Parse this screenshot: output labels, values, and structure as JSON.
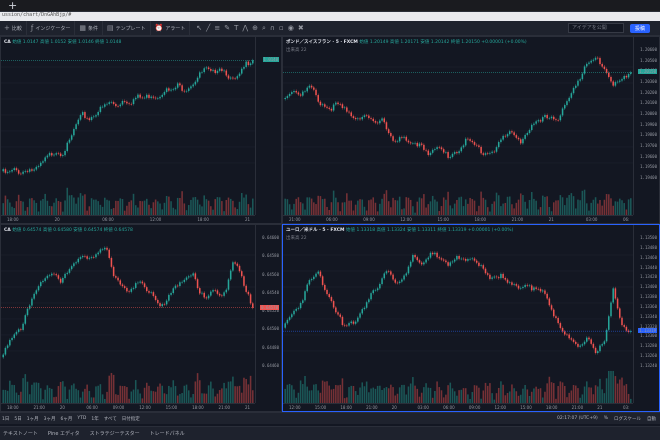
{
  "browser": {
    "url_text": "ussion/chart/DnGAhBjp/#"
  },
  "toolbar": {
    "items": [
      {
        "icon": "plus-icon",
        "glyph": "+",
        "label": "比較"
      },
      {
        "icon": "indicator-icon",
        "glyph": "ƒ",
        "label": "インジケーター"
      },
      {
        "icon": "layout-icon",
        "glyph": "▦",
        "label": "条件"
      },
      {
        "icon": "template-icon",
        "glyph": "▤",
        "label": "テンプレート"
      },
      {
        "icon": "alert-icon",
        "glyph": "⏰",
        "label": "アラート"
      }
    ],
    "search_placeholder": "アイデアを公開",
    "login_label": "投稿"
  },
  "panes": [
    {
      "symbol": "CA",
      "ohlc": "始値 1.0147  高値 1.0152  安値 1.0146  終値 1.0148",
      "price_tag": "1.0148",
      "price_tag_color": "#26a69a",
      "yticks": [],
      "xticks": [
        "18:00",
        "20",
        "06:00",
        "12:00",
        "18:00",
        "21"
      ],
      "series": [
        0.06,
        0.04,
        0.07,
        0.05,
        0.08,
        0.06,
        0.12,
        0.18,
        0.22,
        0.2,
        0.28,
        0.42,
        0.5,
        0.47,
        0.52,
        0.56,
        0.6,
        0.57,
        0.62,
        0.6,
        0.64,
        0.63,
        0.66,
        0.64,
        0.7,
        0.68,
        0.73,
        0.7,
        0.74,
        0.8,
        0.86,
        0.82,
        0.88,
        0.84,
        0.76,
        0.8,
        0.9,
        0.94
      ]
    },
    {
      "symbol": "ポンド／スイスフラン · 5 · FXCM",
      "ohlc": "始値 1.20149  高値 1.20171  安値 1.20142  終値 1.20150  +0.00001 (+0.00%)",
      "sub": "出来高 22",
      "price_tag": "1.20150",
      "price_tag_color": "#26a69a",
      "yticks": [
        "1.20600",
        "1.20500",
        "1.20400",
        "1.20300",
        "1.20200",
        "1.20100",
        "1.20000",
        "1.19900",
        "1.19800",
        "1.19700",
        "1.19600",
        "1.19500",
        "1.19400"
      ],
      "xticks": [
        "21:00",
        "06:00",
        "09:00",
        "12:00",
        "15:00",
        "18:00",
        "21:00",
        "21",
        "03:00",
        "06:"
      ],
      "series": [
        0.62,
        0.7,
        0.66,
        0.72,
        0.6,
        0.55,
        0.58,
        0.52,
        0.48,
        0.5,
        0.42,
        0.46,
        0.3,
        0.32,
        0.26,
        0.28,
        0.2,
        0.24,
        0.18,
        0.22,
        0.3,
        0.26,
        0.2,
        0.22,
        0.32,
        0.36,
        0.3,
        0.4,
        0.44,
        0.5,
        0.46,
        0.6,
        0.72,
        0.9,
        0.96,
        0.86,
        0.74,
        0.8,
        0.82
      ]
    },
    {
      "symbol": "CA",
      "ohlc": "始値 0.64574  高値 0.64580  安値 0.64574  終値 0.64578",
      "price_tag": "0.64578",
      "price_tag_color": "#ef5350",
      "yticks": [
        "0.64600",
        "0.64580",
        "0.64560",
        "0.64540",
        "0.64520",
        "0.64500",
        "0.64480",
        "0.64460"
      ],
      "xticks": [
        "18:00",
        "21:00",
        "20",
        "06:00",
        "09:00",
        "12:00",
        "15:00",
        "18:00",
        "21:00",
        "21"
      ],
      "series": [
        0.1,
        0.16,
        0.24,
        0.3,
        0.46,
        0.58,
        0.64,
        0.7,
        0.74,
        0.68,
        0.76,
        0.8,
        0.84,
        0.86,
        0.88,
        0.92,
        0.9,
        0.7,
        0.66,
        0.6,
        0.62,
        0.66,
        0.58,
        0.56,
        0.48,
        0.52,
        0.6,
        0.64,
        0.7,
        0.74,
        0.58,
        0.52,
        0.6,
        0.56,
        0.62,
        0.82,
        0.74,
        0.58,
        0.48
      ]
    },
    {
      "symbol": "ユーロ／米ドル · 5 · FXCM",
      "ohlc": "始値 1.13318  高値 1.13324  安値 1.13311  終値 1.13319  +0.00001 (+0.00%)",
      "sub": "出来高 22",
      "price_tag": "1.13319",
      "price_tag_color": "#2962ff",
      "yticks": [
        "1.13500",
        "1.13480",
        "1.13460",
        "1.13440",
        "1.13420",
        "1.13400",
        "1.13380",
        "1.13360",
        "1.13340",
        "1.13320",
        "1.13300",
        "1.13280",
        "1.13260",
        "1.13240"
      ],
      "xticks": [
        "12:00",
        "15:00",
        "18:00",
        "21:00",
        "20",
        "03:00",
        "06:00",
        "09:00",
        "12:00",
        "15:00",
        "18:00",
        "21:00",
        "21",
        "03:"
      ],
      "series": [
        0.3,
        0.42,
        0.5,
        0.66,
        0.74,
        0.6,
        0.46,
        0.3,
        0.34,
        0.44,
        0.56,
        0.62,
        0.78,
        0.66,
        0.7,
        0.86,
        0.8,
        0.9,
        0.84,
        0.78,
        0.88,
        0.84,
        0.82,
        0.76,
        0.7,
        0.72,
        0.64,
        0.62,
        0.66,
        0.6,
        0.58,
        0.44,
        0.3,
        0.2,
        0.14,
        0.24,
        0.12,
        0.18,
        0.6,
        0.34,
        0.26
      ]
    }
  ],
  "status": {
    "left_items": [
      "1日",
      "5日",
      "1ヶ月",
      "3ヶ月",
      "6ヶ月",
      "YTD",
      "1年",
      "すべて",
      "日付指定"
    ],
    "time": "02:17:07 (UTC+9)",
    "right_items": [
      "%",
      "ログスケール",
      "自動"
    ]
  },
  "bottom_tabs": [
    "テキストノート",
    "Pine エディタ",
    "ストラテジーテスター",
    "トレードパネル"
  ],
  "colors": {
    "up": "#26a69a",
    "down": "#ef5350",
    "accent": "#2962ff",
    "bg": "#131722"
  }
}
